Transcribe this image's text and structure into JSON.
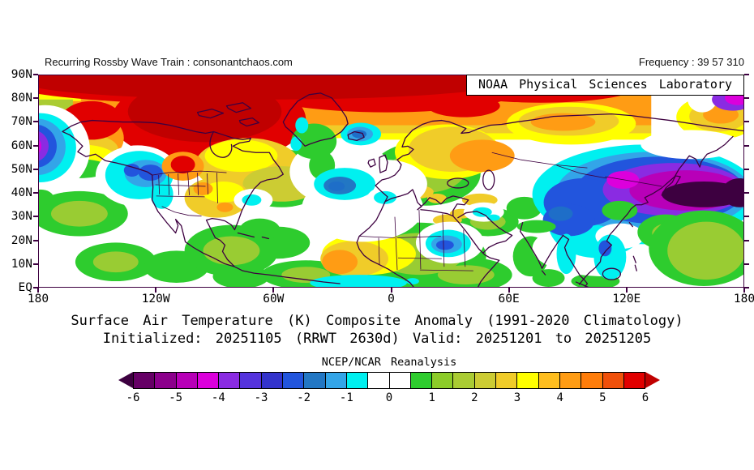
{
  "header": {
    "site_label": "Recurring Rossby Wave Train : consonantchaos.com",
    "frequency_label": "Frequency : 39 57 310"
  },
  "map": {
    "credit_box": "NOAA Physical Sciences Laboratory",
    "lat_ticks": [
      "90N",
      "80N",
      "70N",
      "60N",
      "50N",
      "40N",
      "30N",
      "20N",
      "10N",
      "EQ"
    ],
    "lon_ticks": [
      "180",
      "120W",
      "60W",
      "0",
      "60E",
      "120E",
      "180"
    ],
    "frame_color": "#3D0040"
  },
  "caption": {
    "title": "Surface Air Temperature (K) Composite Anomaly (1991-2020 Climatology)",
    "subtitle": "Initialized: 20251105 (RRWT 2630d) Valid: 20251201 to 20251205",
    "dataset_label": "NCEP/NCAR Reanalysis"
  },
  "colorbar": {
    "tick_labels": [
      "-6",
      "-5",
      "-4",
      "-3",
      "-2",
      "-1",
      "0",
      "1",
      "2",
      "3",
      "4",
      "5",
      "6"
    ],
    "cells": [
      "#660066",
      "#8C008C",
      "#B800B8",
      "#DC00DC",
      "#8A2BE2",
      "#5533DD",
      "#3333CC",
      "#2255DD",
      "#2277C4",
      "#33A5E8",
      "#00F0F0",
      "#FFFFFF",
      "#FFFFFF",
      "#2ECC2E",
      "#8CCC29",
      "#AACC33",
      "#CCCC33",
      "#F0CC29",
      "#FFFF00",
      "#FFBE1E",
      "#FF9C14",
      "#FF7D0A",
      "#F0500A",
      "#E10000"
    ],
    "left_arrow": "#3D0040",
    "right_arrow": "#C00000"
  },
  "chart_data": {
    "type": "heatmap",
    "title": "Surface Air Temperature (K) Composite Anomaly (1991-2020 Climatology)",
    "subtitle": "Initialized: 20251105 (RRWT 2630d) Valid: 20251201 to 20251205",
    "dataset": "NCEP/NCAR Reanalysis",
    "units": "K",
    "lat_range": [
      "EQ",
      "90N"
    ],
    "lon_range": [
      "180W",
      "180E"
    ],
    "colorbar_ticks": [
      -6,
      -5,
      -4,
      -3,
      -2,
      -1,
      0,
      1,
      2,
      3,
      4,
      5,
      6
    ],
    "colorbar_interval": 0.5,
    "legend_position": "bottom",
    "features": [
      {
        "region": "Arctic band 75N-90N (most longitudes)",
        "anomaly_K": "+5 to >+6"
      },
      {
        "region": "Bering Sea / far western Aleutians",
        "anomaly_K": "-3 to -5"
      },
      {
        "region": "Alaska and northwest Canada",
        "anomaly_K": "+4 to >+6"
      },
      {
        "region": "Central and eastern Canada",
        "anomaly_K": "+1 to +4"
      },
      {
        "region": "Gulf of Alaska / Pacific Northwest",
        "anomaly_K": "-1 to -2"
      },
      {
        "region": "Northern Rockies (Montana/Alberta)",
        "anomaly_K": "+5"
      },
      {
        "region": "Central US plains",
        "anomaly_K": "+2 to +4"
      },
      {
        "region": "North Atlantic near Iceland and mid-ocean",
        "anomaly_K": "-1 to -2"
      },
      {
        "region": "Scandinavia / northwest Russia",
        "anomaly_K": "+3 to +5"
      },
      {
        "region": "Europe",
        "anomaly_K": "+1 to +2"
      },
      {
        "region": "Northwest Africa",
        "anomaly_K": "+3 to +4"
      },
      {
        "region": "Sudan (northeast Africa)",
        "anomaly_K": "-1 to -2"
      },
      {
        "region": "Central Siberia through Mongolia",
        "anomaly_K": "-2 to -5"
      },
      {
        "region": "Sea of Okhotsk / Kamchatka / far-east Russia",
        "anomaly_K": "<-6"
      },
      {
        "region": "Tibet / southwest China / Indochina",
        "anomaly_K": "-1 to -2"
      },
      {
        "region": "Western tropical Pacific",
        "anomaly_K": "+1 to +2"
      },
      {
        "region": "Tropics generally",
        "anomaly_K": "0 to +1"
      }
    ]
  }
}
